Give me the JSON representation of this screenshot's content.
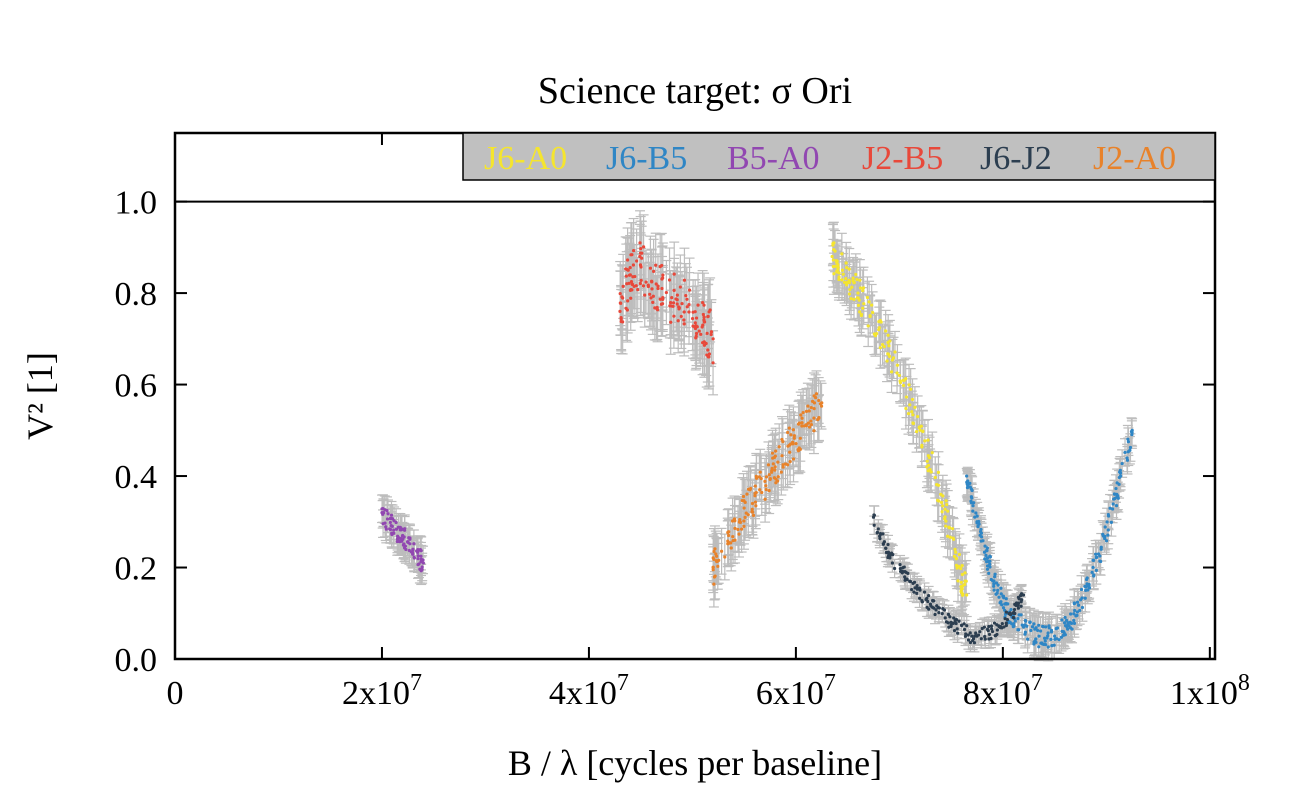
{
  "chart_data": {
    "type": "scatter",
    "title": "Science target: σ Ori",
    "xlabel": "B / λ [cycles per baseline]",
    "ylabel": "V² [1]",
    "xlim": [
      0,
      100500000
    ],
    "ylim": [
      0,
      1.15
    ],
    "reference_line_y": 1.0,
    "legend_placement": "top-right",
    "error_bar_color": "#bdbdbd",
    "x_tick_labels": [
      {
        "value": 0,
        "base": "0",
        "exp": ""
      },
      {
        "value": 20000000,
        "base": "2x10",
        "exp": "7"
      },
      {
        "value": 40000000,
        "base": "4x10",
        "exp": "7"
      },
      {
        "value": 60000000,
        "base": "6x10",
        "exp": "7"
      },
      {
        "value": 80000000,
        "base": "8x10",
        "exp": "7"
      },
      {
        "value": 100000000,
        "base": "1x10",
        "exp": "8"
      }
    ],
    "y_ticks": [
      0.0,
      0.2,
      0.4,
      0.6,
      0.8,
      1.0
    ],
    "y_tick_labels": [
      "0.0",
      "0.2",
      "0.4",
      "0.6",
      "0.8",
      "1.0"
    ],
    "series": [
      {
        "name": "J6-A0",
        "color": "#f5e52e",
        "error": 0.045,
        "points": [
          [
            63500000,
            0.88
          ],
          [
            64500000,
            0.85
          ],
          [
            66000000,
            0.8
          ],
          [
            68000000,
            0.72
          ],
          [
            70000000,
            0.62
          ],
          [
            72000000,
            0.5
          ],
          [
            74000000,
            0.36
          ],
          [
            75500000,
            0.22
          ],
          [
            76500000,
            0.14
          ]
        ]
      },
      {
        "name": "J6-B5",
        "color": "#2f86c5",
        "error": 0.03,
        "points": [
          [
            76500000,
            0.4
          ],
          [
            77500000,
            0.3
          ],
          [
            78500000,
            0.22
          ],
          [
            79500000,
            0.15
          ],
          [
            80500000,
            0.1
          ],
          [
            82000000,
            0.07
          ],
          [
            83500000,
            0.05
          ],
          [
            85000000,
            0.05
          ],
          [
            86500000,
            0.08
          ],
          [
            88000000,
            0.15
          ],
          [
            89500000,
            0.24
          ],
          [
            91000000,
            0.36
          ],
          [
            92500000,
            0.5
          ]
        ]
      },
      {
        "name": "B5-A0",
        "color": "#9147b1",
        "error": 0.03,
        "points": [
          [
            20000000,
            0.32
          ],
          [
            21000000,
            0.29
          ],
          [
            22000000,
            0.27
          ],
          [
            23000000,
            0.24
          ],
          [
            24000000,
            0.21
          ]
        ]
      },
      {
        "name": "J2-B5",
        "color": "#e8483a",
        "error": 0.07,
        "points": [
          [
            43000000,
            0.76
          ],
          [
            44000000,
            0.84
          ],
          [
            45000000,
            0.86
          ],
          [
            46500000,
            0.82
          ],
          [
            48000000,
            0.79
          ],
          [
            49500000,
            0.77
          ],
          [
            51000000,
            0.73
          ],
          [
            52000000,
            0.7
          ]
        ]
      },
      {
        "name": "J6-J2",
        "color": "#2c3e50",
        "error": 0.02,
        "points": [
          [
            67500000,
            0.31
          ],
          [
            69000000,
            0.23
          ],
          [
            71000000,
            0.17
          ],
          [
            73000000,
            0.12
          ],
          [
            75000000,
            0.08
          ],
          [
            77000000,
            0.05
          ],
          [
            79000000,
            0.06
          ],
          [
            81000000,
            0.1
          ],
          [
            82000000,
            0.14
          ]
        ]
      },
      {
        "name": "J2-A0",
        "color": "#e8822a",
        "error": 0.05,
        "points": [
          [
            52000000,
            0.2
          ],
          [
            53500000,
            0.27
          ],
          [
            55000000,
            0.33
          ],
          [
            56500000,
            0.37
          ],
          [
            58000000,
            0.42
          ],
          [
            59500000,
            0.47
          ],
          [
            61000000,
            0.51
          ],
          [
            62500000,
            0.56
          ]
        ]
      }
    ]
  }
}
